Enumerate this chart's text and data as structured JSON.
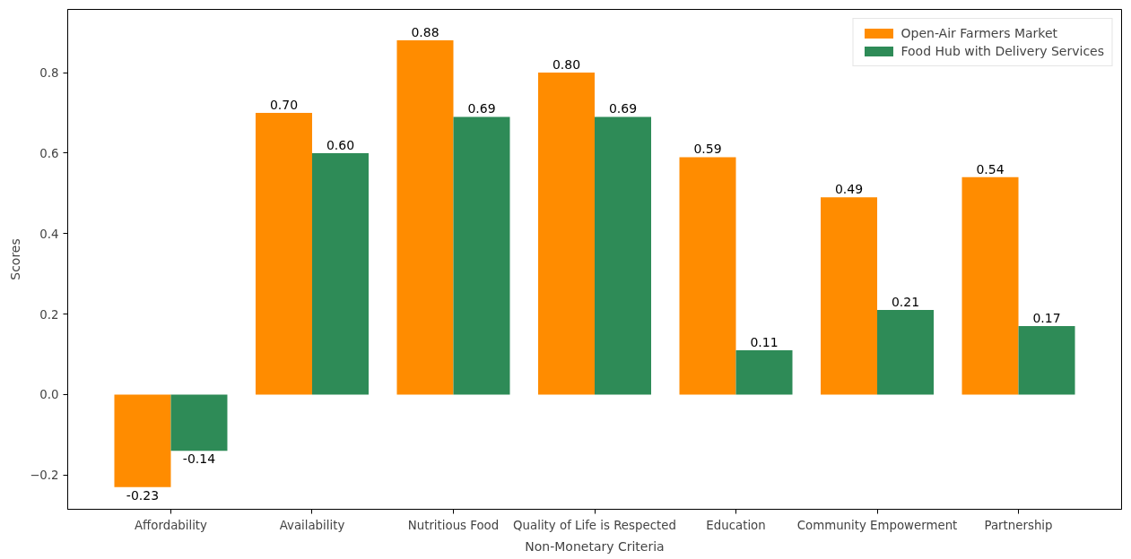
{
  "chart_data": {
    "type": "bar",
    "xlabel": "Non-Monetary Criteria",
    "ylabel": "Scores",
    "categories": [
      "Affordability",
      "Availability",
      "Nutritious Food",
      "Quality of Life is Respected",
      "Education",
      "Community Empowerment",
      "Partnership"
    ],
    "series": [
      {
        "name": "Open-Air Farmers Market",
        "color": "#ff8c00",
        "values": [
          -0.23,
          0.7,
          0.88,
          0.8,
          0.59,
          0.49,
          0.54
        ],
        "value_labels": [
          "-0.23",
          "0.70",
          "0.88",
          "0.80",
          "0.59",
          "0.49",
          "0.54"
        ]
      },
      {
        "name": "Food Hub with Delivery Services",
        "color": "#2e8b57",
        "values": [
          -0.14,
          0.6,
          0.69,
          0.69,
          0.11,
          0.21,
          0.17
        ],
        "value_labels": [
          "-0.14",
          "0.60",
          "0.69",
          "0.69",
          "0.11",
          "0.21",
          "0.17"
        ]
      }
    ],
    "ylim": [
      -0.285,
      0.957
    ],
    "yticks": [
      {
        "value": -0.2,
        "label": "−0.2"
      },
      {
        "value": 0.0,
        "label": "0.0"
      },
      {
        "value": 0.2,
        "label": "0.2"
      },
      {
        "value": 0.4,
        "label": "0.4"
      },
      {
        "value": 0.6,
        "label": "0.6"
      },
      {
        "value": 0.8,
        "label": "0.8"
      }
    ],
    "grid": false,
    "legend": "top right"
  }
}
